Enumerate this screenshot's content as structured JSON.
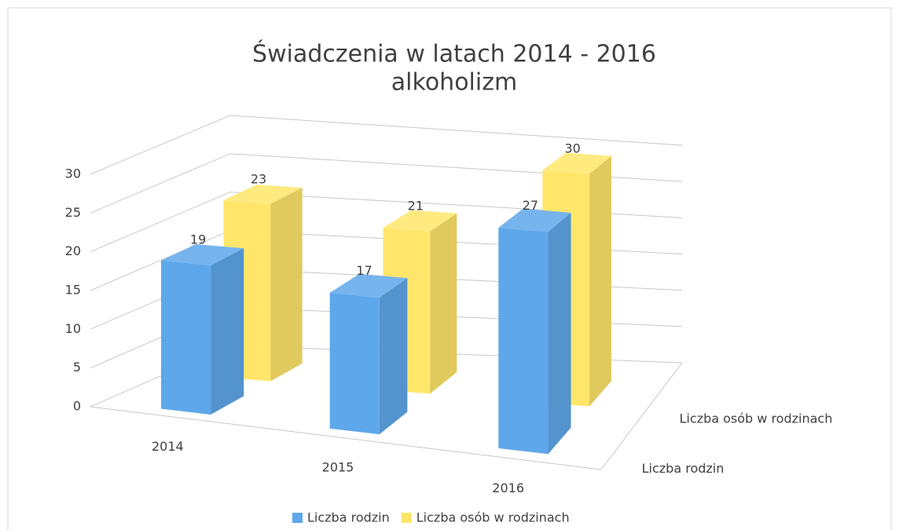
{
  "chart_data": {
    "type": "bar3d",
    "title": "Świadczenia w latach 2014 - 2016",
    "subtitle": "alkoholizm",
    "categories": [
      "2014",
      "2015",
      "2016"
    ],
    "series": [
      {
        "name": "Liczba rodzin",
        "color": "#5ea7ea",
        "values": [
          19,
          17,
          27
        ]
      },
      {
        "name": "Liczba osób w rodzinach",
        "color": "#ffe66a",
        "values": [
          23,
          21,
          30
        ]
      }
    ],
    "ylim": [
      0,
      30
    ],
    "yticks": [
      0,
      5,
      10,
      15,
      20,
      25,
      30
    ],
    "grid": true,
    "legend": "bottom"
  }
}
